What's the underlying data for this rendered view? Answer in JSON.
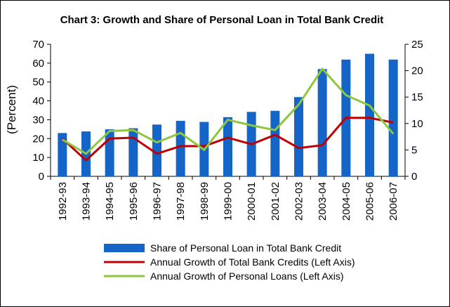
{
  "chart_data": {
    "type": "bar",
    "title": "Chart 3: Growth and Share of Personal Loan in Total Bank Credit",
    "ylabel": "(Percent)",
    "xlabel": "",
    "categories": [
      "1992-93",
      "1993-94",
      "1994-95",
      "1995-96",
      "1996-97",
      "1997-98",
      "1998-99",
      "1999-00",
      "2000-01",
      "2001-02",
      "2002-03",
      "2003-04",
      "2004-05",
      "2005-06",
      "2006-07"
    ],
    "left_axis": {
      "ylim": [
        0,
        70
      ],
      "ticks": [
        0,
        10,
        20,
        30,
        40,
        50,
        60,
        70
      ]
    },
    "right_axis": {
      "ylim": [
        0,
        25
      ],
      "ticks": [
        0,
        5,
        10,
        15,
        20,
        25
      ]
    },
    "series": [
      {
        "name": "Share of Personal Loan in Total Bank Credit",
        "kind": "bar",
        "axis": "right",
        "color": "#1565C8",
        "values": [
          8.2,
          8.5,
          8.9,
          9.1,
          9.8,
          10.5,
          10.3,
          11.2,
          12.2,
          12.4,
          15.0,
          20.3,
          22.1,
          23.2,
          22.1
        ]
      },
      {
        "name": "Annual Growth of Total Bank Credits (Left Axis)",
        "kind": "line",
        "axis": "left",
        "color": "#C00000",
        "values": [
          20,
          8.5,
          20,
          20.5,
          12,
          16,
          16,
          20.5,
          17,
          22,
          15,
          16.5,
          31,
          31,
          28.5
        ]
      },
      {
        "name": "Annual Growth of Personal Loans (Left Axis)",
        "kind": "line",
        "axis": "left",
        "color": "#8DC63F",
        "values": [
          19.5,
          12,
          24,
          24.5,
          18,
          23,
          14,
          30,
          27,
          24.5,
          38,
          57,
          43,
          37.5,
          22.5
        ]
      }
    ],
    "grid": false,
    "legend_position": "bottom"
  }
}
